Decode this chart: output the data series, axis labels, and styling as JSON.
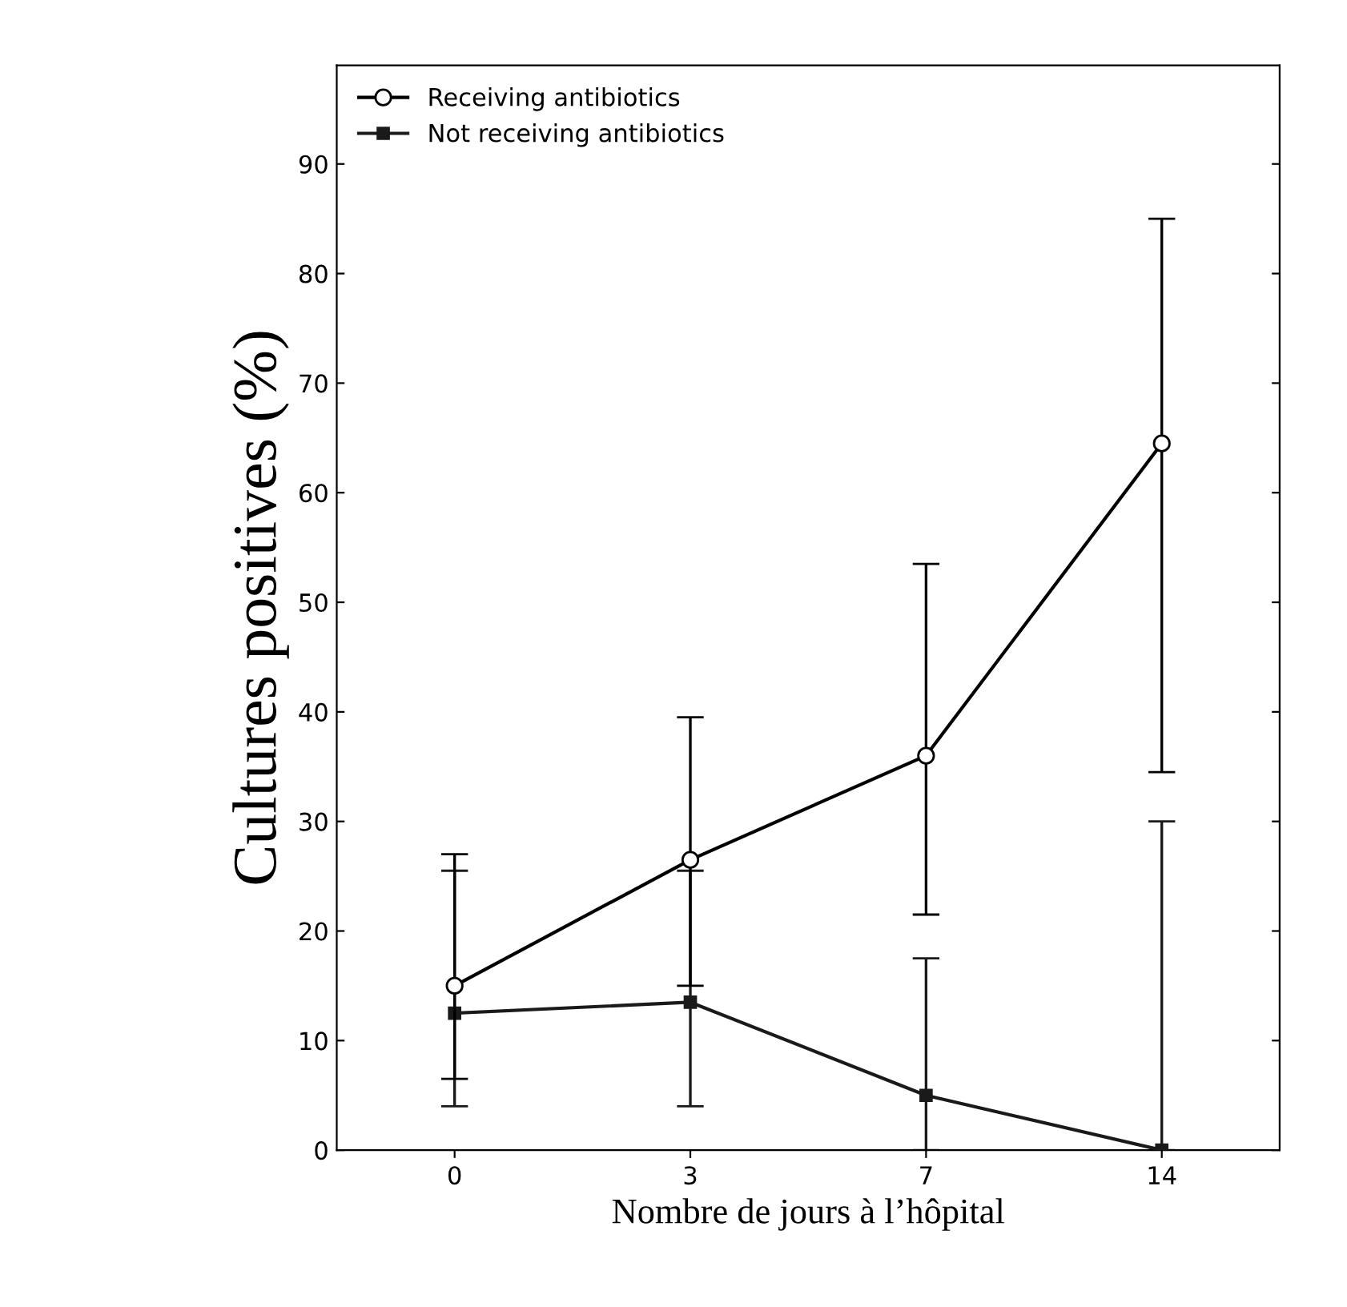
{
  "chart_data": {
    "type": "line",
    "xlabel": "Nombre de jours à l’hôpital",
    "ylabel": "Cultures positives (%)",
    "categories": [
      "0",
      "3",
      "7",
      "14"
    ],
    "series": [
      {
        "name": "Receiving antibiotics",
        "color": "#000000",
        "marker": "circle",
        "values": [
          15,
          26.5,
          36,
          64.5
        ],
        "errors": [
          [
            6.5,
            27
          ],
          [
            15,
            39.5
          ],
          [
            21.5,
            53.5
          ],
          [
            34.5,
            85
          ]
        ]
      },
      {
        "name": "Not receiving antibiotics",
        "color": "#1a1a1a",
        "marker": "square",
        "values": [
          12.5,
          13.5,
          5,
          0
        ],
        "errors": [
          [
            4,
            25.5
          ],
          [
            4,
            25.5
          ],
          [
            0,
            17.5
          ],
          [
            0,
            30
          ]
        ]
      }
    ],
    "ylim": [
      0,
      99
    ],
    "yticks": [
      0,
      10,
      20,
      30,
      40,
      50,
      60,
      70,
      80,
      90
    ],
    "grid": false,
    "legend": "top left"
  }
}
